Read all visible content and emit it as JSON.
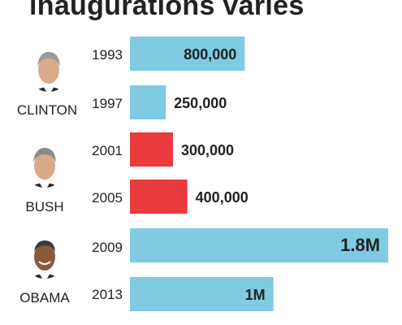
{
  "title": "inaugurations varies",
  "colors": {
    "democrat": "#7ecbe2",
    "republican": "#e93a3d",
    "text": "#222222"
  },
  "chart_data": {
    "type": "bar",
    "orientation": "horizontal",
    "title": "inaugurations varies",
    "categories": [
      "1993",
      "1997",
      "2001",
      "2005",
      "2009",
      "2013"
    ],
    "values": [
      800000,
      250000,
      300000,
      400000,
      1800000,
      1000000
    ],
    "value_labels": [
      "800,000",
      "250,000",
      "300,000",
      "400,000",
      "1.8M",
      "1M"
    ],
    "bar_colors": [
      "#7ecbe2",
      "#7ecbe2",
      "#e93a3d",
      "#e93a3d",
      "#7ecbe2",
      "#7ecbe2"
    ],
    "groups": [
      {
        "name": "CLINTON",
        "portrait_icon": "clinton-portrait-icon",
        "years": [
          "1993",
          "1997"
        ]
      },
      {
        "name": "BUSH",
        "portrait_icon": "bush-portrait-icon",
        "years": [
          "2001",
          "2005"
        ]
      },
      {
        "name": "OBAMA",
        "portrait_icon": "obama-portrait-icon",
        "years": [
          "2009",
          "2013"
        ]
      }
    ],
    "xlim": [
      0,
      1800000
    ],
    "grid": false
  }
}
